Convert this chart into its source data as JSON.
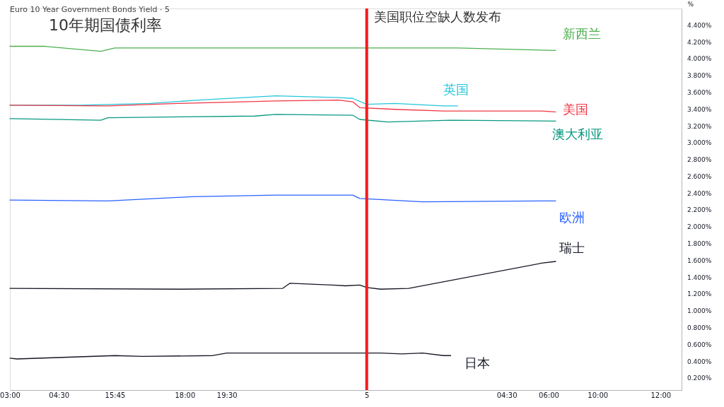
{
  "chart_data": {
    "type": "line",
    "title": "10年期国债利率",
    "subtitle": "Euro 10 Year Government Bonds Yield · 5",
    "ylabel": "%",
    "categories": [
      "03:00",
      null,
      null,
      null,
      null,
      null,
      null,
      "04:30",
      null,
      null,
      null,
      null,
      null,
      null,
      null,
      "15:45",
      null,
      null,
      null,
      null,
      null,
      null,
      null,
      null,
      null,
      "18:00",
      null,
      null,
      null,
      null,
      null,
      "19:30",
      null,
      null,
      null,
      null,
      null,
      null,
      null,
      null,
      null,
      null,
      null,
      null,
      null,
      null,
      null,
      null,
      null,
      null,
      null,
      "5",
      null,
      null,
      null,
      null,
      null,
      null,
      null,
      null,
      null,
      null,
      null,
      null,
      null,
      null,
      null,
      null,
      null,
      null,
      null,
      "04:30",
      null,
      null,
      null,
      null,
      null,
      "06:00",
      null,
      null,
      null,
      null,
      null,
      null,
      "10:00",
      null,
      null,
      null,
      null,
      null,
      null,
      null,
      null,
      "12:00",
      null,
      null,
      null
    ],
    "ylim": [
      0.06,
      4.6
    ],
    "yticks": [
      {
        "value": 0.2,
        "label": "0.200%"
      },
      {
        "value": 0.4,
        "label": "0.400%"
      },
      {
        "value": 0.6,
        "label": "0.600%"
      },
      {
        "value": 0.8,
        "label": "0.800%"
      },
      {
        "value": 1.0,
        "label": "1.000%"
      },
      {
        "value": 1.2,
        "label": "1.200%"
      },
      {
        "value": 1.4,
        "label": "1.400%"
      },
      {
        "value": 1.6,
        "label": "1.600%"
      },
      {
        "value": 1.8,
        "label": "1.800%"
      },
      {
        "value": 2.0,
        "label": "2.000%"
      },
      {
        "value": 2.2,
        "label": "2.200%"
      },
      {
        "value": 2.4,
        "label": "2.400%"
      },
      {
        "value": 2.6,
        "label": "2.600%"
      },
      {
        "value": 2.8,
        "label": "2.800%"
      },
      {
        "value": 3.0,
        "label": "3.000%"
      },
      {
        "value": 3.2,
        "label": "3.200%"
      },
      {
        "value": 3.4,
        "label": "3.400%"
      },
      {
        "value": 3.6,
        "label": "3.600%"
      },
      {
        "value": 3.8,
        "label": "3.800%"
      },
      {
        "value": 4.0,
        "label": "4.000%"
      },
      {
        "value": 4.2,
        "label": "4.200%"
      },
      {
        "value": 4.4,
        "label": "4.400%"
      }
    ],
    "grid": false,
    "marker": "none",
    "line_style": "solid",
    "ref_lines": [
      {
        "axis": "x",
        "value": "5",
        "label": "美国职位空缺人数发布",
        "color": "#f41a1a"
      }
    ],
    "series": [
      {
        "name": "新西兰",
        "color": "#4caf50",
        "values": [
          4.15,
          null,
          null,
          null,
          null,
          4.15,
          null,
          null,
          null,
          null,
          null,
          null,
          null,
          4.09,
          null,
          4.13,
          null,
          null,
          null,
          null,
          null,
          null,
          null,
          null,
          null,
          null,
          null,
          null,
          null,
          null,
          null,
          null,
          null,
          null,
          null,
          null,
          null,
          null,
          null,
          null,
          null,
          null,
          null,
          null,
          null,
          null,
          null,
          null,
          null,
          null,
          null,
          null,
          null,
          null,
          null,
          null,
          null,
          null,
          null,
          null,
          null,
          null,
          null,
          null,
          4.13,
          null,
          null,
          null,
          null,
          null,
          null,
          null,
          null,
          null,
          null,
          null,
          null,
          null,
          4.1,
          null,
          null,
          null,
          null,
          null,
          null,
          null,
          null,
          null,
          null,
          null,
          null,
          null,
          null,
          null,
          null,
          null,
          null
        ]
      },
      {
        "name": "英国",
        "color": "#26c6da",
        "values": [
          3.45,
          null,
          null,
          null,
          null,
          null,
          null,
          null,
          null,
          null,
          3.45,
          null,
          null,
          null,
          null,
          null,
          null,
          null,
          null,
          null,
          3.47,
          null,
          null,
          null,
          null,
          null,
          null,
          3.51,
          null,
          null,
          null,
          null,
          null,
          null,
          null,
          null,
          null,
          null,
          3.56,
          null,
          null,
          null,
          null,
          null,
          null,
          null,
          null,
          3.54,
          null,
          3.53,
          null,
          3.46,
          null,
          null,
          null,
          3.47,
          null,
          null,
          null,
          null,
          null,
          null,
          3.44,
          null,
          3.44,
          null,
          null,
          null,
          null,
          null,
          null,
          null,
          null,
          null,
          null,
          null,
          null,
          null,
          null,
          null,
          null,
          null,
          null,
          null,
          null,
          null,
          null,
          null,
          null,
          null,
          null,
          null,
          null,
          null,
          null,
          null,
          null
        ]
      },
      {
        "name": "美国",
        "color": "#f23645",
        "values": [
          3.45,
          null,
          null,
          null,
          null,
          null,
          null,
          null,
          null,
          null,
          null,
          null,
          null,
          null,
          3.44,
          null,
          null,
          null,
          null,
          null,
          null,
          null,
          null,
          null,
          3.47,
          null,
          null,
          null,
          null,
          null,
          null,
          null,
          null,
          null,
          null,
          null,
          null,
          null,
          3.5,
          null,
          null,
          null,
          null,
          null,
          null,
          null,
          null,
          3.51,
          null,
          3.49,
          3.42,
          null,
          null,
          null,
          null,
          3.4,
          null,
          null,
          null,
          null,
          null,
          null,
          3.38,
          null,
          null,
          3.38,
          null,
          null,
          null,
          null,
          null,
          null,
          null,
          null,
          null,
          null,
          3.38,
          null,
          3.37,
          null,
          null,
          null,
          null,
          null,
          null,
          null,
          null,
          null,
          null,
          null,
          null,
          null,
          null,
          null,
          null,
          null,
          null
        ]
      },
      {
        "name": "澳大利亚",
        "color": "#089981",
        "values": [
          3.29,
          null,
          null,
          null,
          null,
          null,
          null,
          null,
          null,
          null,
          null,
          null,
          null,
          3.27,
          3.3,
          null,
          null,
          null,
          null,
          null,
          null,
          null,
          null,
          null,
          null,
          null,
          null,
          null,
          null,
          null,
          null,
          null,
          null,
          null,
          null,
          3.32,
          null,
          null,
          3.34,
          null,
          null,
          null,
          null,
          null,
          null,
          null,
          null,
          null,
          null,
          3.33,
          3.28,
          null,
          null,
          null,
          3.25,
          null,
          null,
          null,
          null,
          null,
          null,
          null,
          null,
          3.27,
          null,
          null,
          null,
          null,
          null,
          null,
          null,
          null,
          null,
          null,
          null,
          null,
          null,
          null,
          3.26,
          null,
          null,
          null,
          null,
          null,
          null,
          null,
          null,
          null,
          null,
          null,
          null,
          null,
          null,
          null,
          null,
          null,
          null
        ]
      },
      {
        "name": "欧洲",
        "color": "#2962ff",
        "values": [
          2.32,
          null,
          null,
          null,
          null,
          null,
          null,
          null,
          null,
          null,
          null,
          null,
          null,
          null,
          2.31,
          null,
          null,
          null,
          null,
          null,
          null,
          null,
          null,
          null,
          null,
          null,
          2.36,
          null,
          null,
          null,
          null,
          null,
          null,
          null,
          null,
          null,
          null,
          null,
          2.38,
          null,
          null,
          null,
          null,
          null,
          null,
          null,
          null,
          null,
          null,
          2.38,
          2.34,
          null,
          null,
          null,
          null,
          null,
          null,
          null,
          null,
          2.3,
          null,
          null,
          null,
          null,
          null,
          null,
          null,
          null,
          null,
          null,
          null,
          null,
          null,
          null,
          null,
          null,
          2.31,
          null,
          2.31,
          null,
          null,
          null,
          null,
          null,
          null,
          null,
          null,
          null,
          null,
          null,
          null,
          null,
          null,
          null,
          null,
          null,
          null
        ]
      },
      {
        "name": "瑞士",
        "color": "#131722",
        "values": [
          1.27,
          null,
          null,
          null,
          null,
          null,
          null,
          null,
          null,
          null,
          null,
          null,
          null,
          null,
          null,
          null,
          null,
          null,
          null,
          null,
          null,
          null,
          null,
          null,
          1.26,
          null,
          null,
          null,
          null,
          null,
          null,
          null,
          null,
          null,
          null,
          null,
          null,
          null,
          null,
          1.27,
          1.33,
          null,
          null,
          null,
          null,
          null,
          1.31,
          null,
          1.3,
          null,
          1.31,
          1.28,
          null,
          1.26,
          null,
          null,
          null,
          1.27,
          null,
          null,
          null,
          null,
          null,
          null,
          null,
          null,
          null,
          null,
          null,
          null,
          null,
          null,
          null,
          null,
          null,
          null,
          1.57,
          null,
          1.59,
          null,
          null,
          null,
          null,
          null,
          null,
          null,
          null,
          null,
          null,
          null,
          null,
          null,
          null,
          null,
          null,
          null,
          null
        ]
      },
      {
        "name": "日本",
        "color": "#131722",
        "values": [
          0.44,
          0.43,
          null,
          null,
          null,
          null,
          null,
          null,
          null,
          null,
          null,
          null,
          null,
          null,
          null,
          0.47,
          null,
          null,
          null,
          0.46,
          null,
          null,
          null,
          null,
          null,
          null,
          null,
          null,
          null,
          0.47,
          null,
          0.5,
          null,
          null,
          null,
          null,
          null,
          null,
          null,
          null,
          null,
          null,
          null,
          null,
          null,
          null,
          null,
          null,
          null,
          null,
          null,
          null,
          null,
          0.5,
          null,
          null,
          0.49,
          null,
          null,
          0.5,
          null,
          null,
          0.47,
          0.47,
          null,
          null,
          null,
          null,
          null,
          null,
          null,
          null,
          null,
          null,
          null,
          null,
          null,
          null,
          null,
          null,
          null,
          null,
          null,
          null,
          null,
          null,
          null,
          null,
          null,
          null,
          null,
          null,
          null,
          null,
          null,
          null,
          null
        ]
      }
    ]
  }
}
